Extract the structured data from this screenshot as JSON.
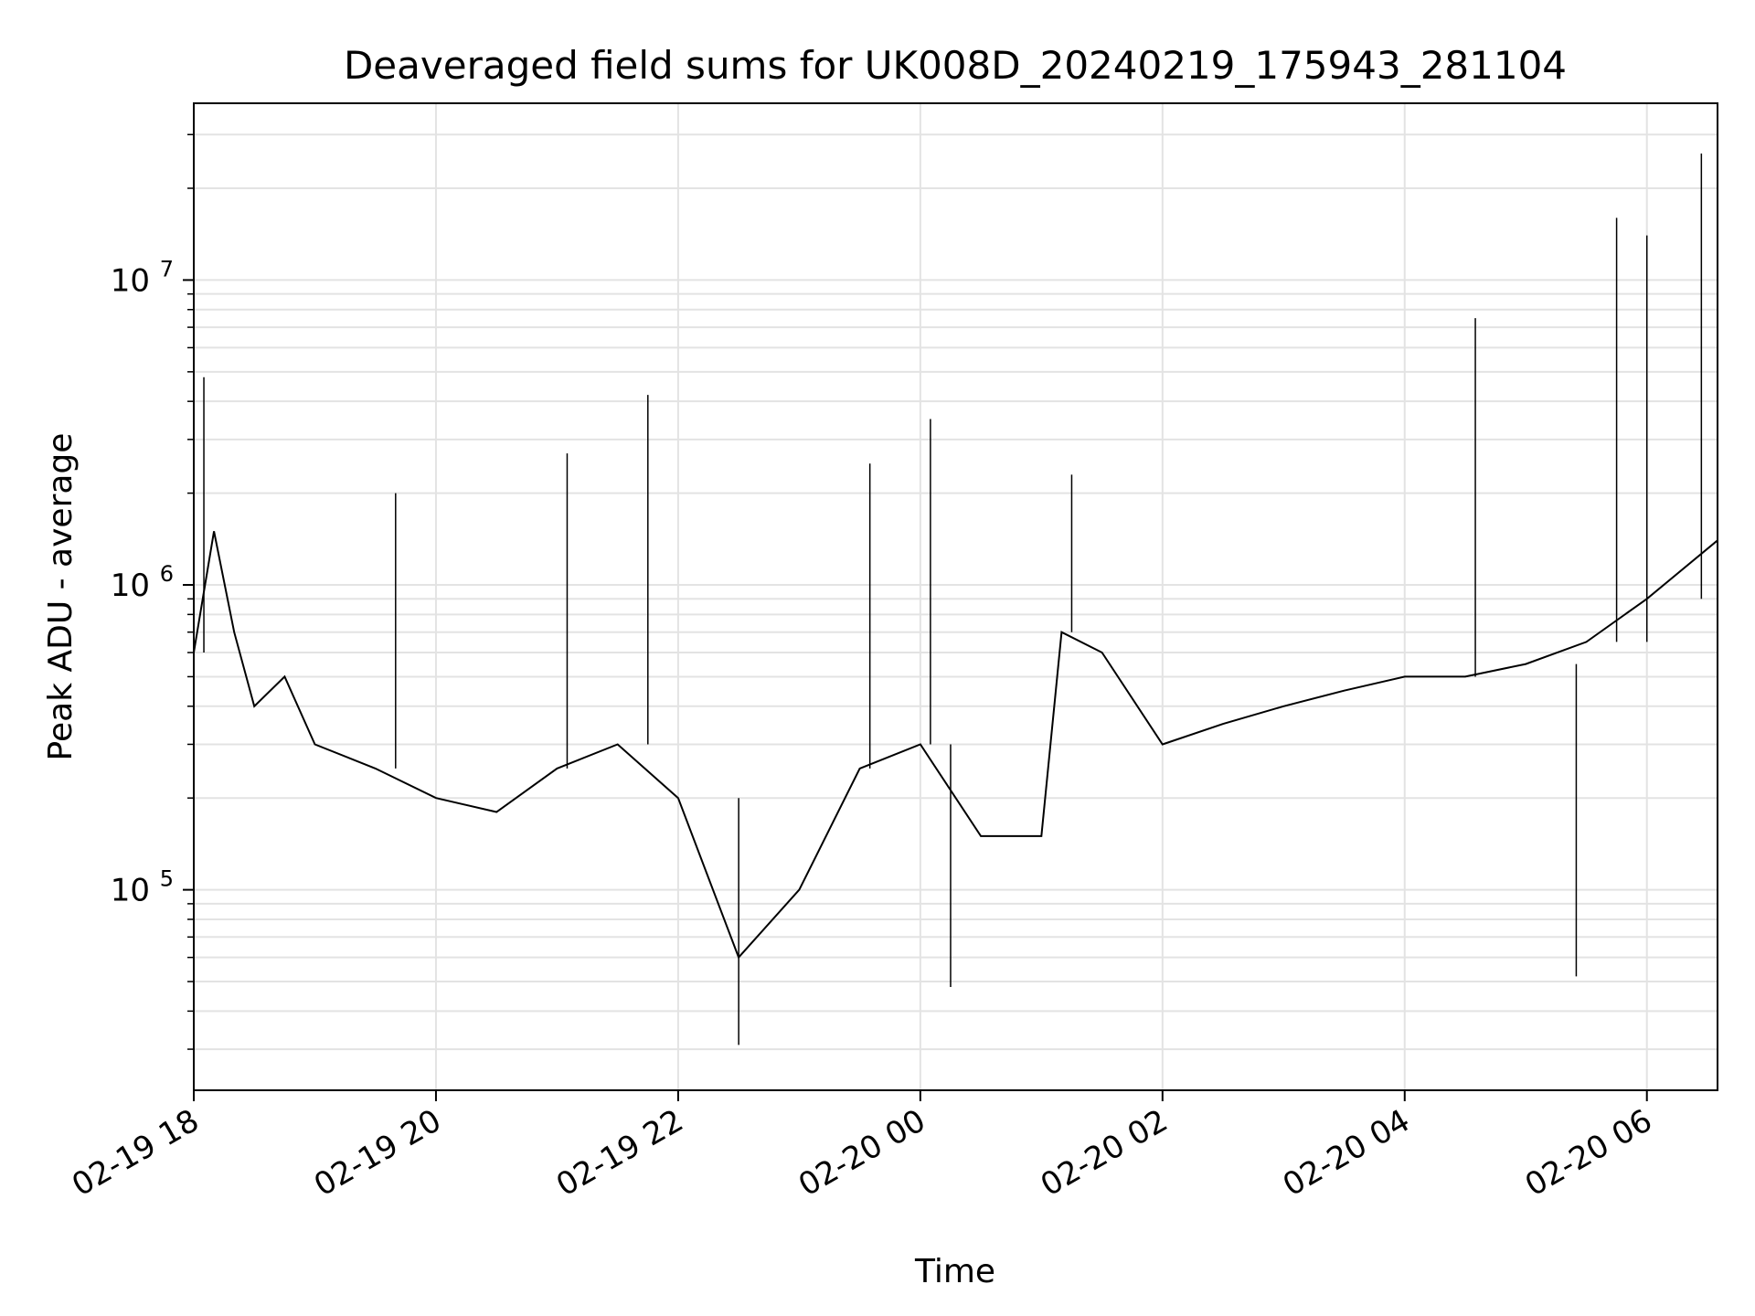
{
  "chart_data": {
    "type": "line",
    "title": "Deaveraged field sums for UK008D_20240219_175943_281104",
    "xlabel": "Time",
    "ylabel": "Peak ADU - average",
    "y_scale": "log",
    "ylim": [
      22000,
      38000000
    ],
    "xlim": [
      "2024-02-19 18:00",
      "2024-02-20 06:35"
    ],
    "grid": true,
    "line_color": "#000000",
    "x_ticks": [
      {
        "value": "2024-02-19 18:00",
        "label": "02-19 18"
      },
      {
        "value": "2024-02-19 20:00",
        "label": "02-19 20"
      },
      {
        "value": "2024-02-19 22:00",
        "label": "02-19 22"
      },
      {
        "value": "2024-02-20 00:00",
        "label": "02-20 00"
      },
      {
        "value": "2024-02-20 02:00",
        "label": "02-20 02"
      },
      {
        "value": "2024-02-20 04:00",
        "label": "02-20 04"
      },
      {
        "value": "2024-02-20 06:00",
        "label": "02-20 06"
      }
    ],
    "y_ticks": [
      {
        "value": 100000,
        "base": "10",
        "exp": "5"
      },
      {
        "value": 1000000,
        "base": "10",
        "exp": "6"
      },
      {
        "value": 10000000,
        "base": "10",
        "exp": "7"
      }
    ],
    "series": [
      {
        "points": [
          [
            "2024-02-19 18:00",
            600000
          ],
          [
            "2024-02-19 18:10",
            1500000
          ],
          [
            "2024-02-19 18:20",
            700000
          ],
          [
            "2024-02-19 18:30",
            400000
          ],
          [
            "2024-02-19 18:45",
            500000
          ],
          [
            "2024-02-19 19:00",
            300000
          ],
          [
            "2024-02-19 19:30",
            250000
          ],
          [
            "2024-02-19 20:00",
            200000
          ],
          [
            "2024-02-19 20:30",
            180000
          ],
          [
            "2024-02-19 21:00",
            250000
          ],
          [
            "2024-02-19 21:30",
            300000
          ],
          [
            "2024-02-19 22:00",
            200000
          ],
          [
            "2024-02-19 22:30",
            60000
          ],
          [
            "2024-02-19 23:00",
            100000
          ],
          [
            "2024-02-19 23:30",
            250000
          ],
          [
            "2024-02-20 00:00",
            300000
          ],
          [
            "2024-02-20 00:30",
            150000
          ],
          [
            "2024-02-20 01:00",
            150000
          ],
          [
            "2024-02-20 01:10",
            700000
          ],
          [
            "2024-02-20 01:30",
            600000
          ],
          [
            "2024-02-20 02:00",
            300000
          ],
          [
            "2024-02-20 02:30",
            350000
          ],
          [
            "2024-02-20 03:00",
            400000
          ],
          [
            "2024-02-20 03:30",
            450000
          ],
          [
            "2024-02-20 04:00",
            500000
          ],
          [
            "2024-02-20 04:30",
            500000
          ],
          [
            "2024-02-20 05:00",
            550000
          ],
          [
            "2024-02-20 05:30",
            650000
          ],
          [
            "2024-02-20 06:00",
            900000
          ],
          [
            "2024-02-20 06:35",
            1400000
          ]
        ],
        "spikes": [
          [
            "2024-02-19 18:05",
            4800000
          ],
          [
            "2024-02-19 19:40",
            2000000
          ],
          [
            "2024-02-19 21:05",
            2700000
          ],
          [
            "2024-02-19 21:45",
            4200000
          ],
          [
            "2024-02-19 22:30",
            31000
          ],
          [
            "2024-02-19 23:35",
            2500000
          ],
          [
            "2024-02-20 00:05",
            3500000
          ],
          [
            "2024-02-20 00:15",
            48000
          ],
          [
            "2024-02-20 01:15",
            2300000
          ],
          [
            "2024-02-20 04:35",
            7500000
          ],
          [
            "2024-02-20 05:25",
            52000
          ],
          [
            "2024-02-20 05:45",
            16000000
          ],
          [
            "2024-02-20 06:00",
            14000000
          ],
          [
            "2024-02-20 06:27",
            26000000
          ]
        ]
      }
    ]
  }
}
